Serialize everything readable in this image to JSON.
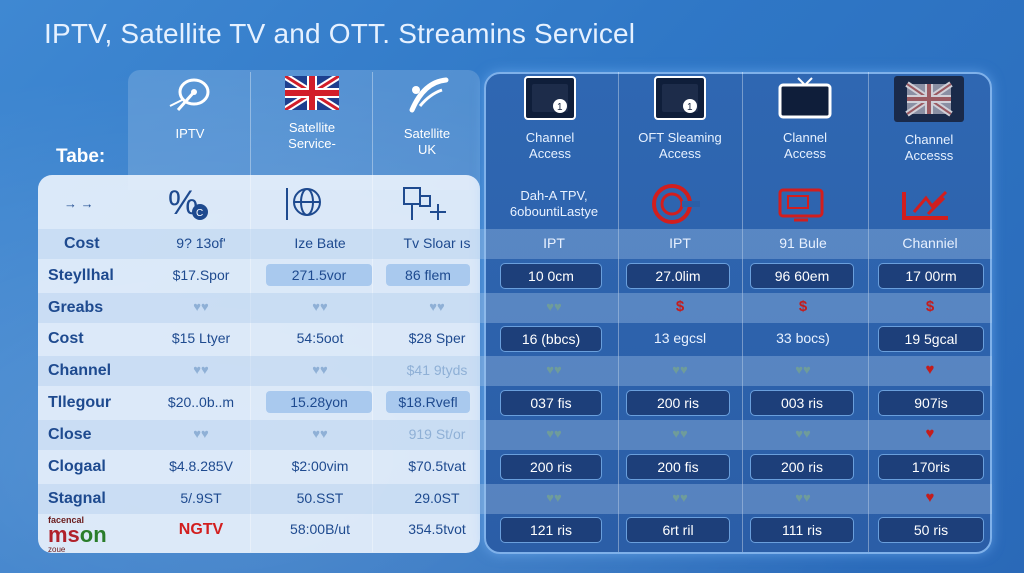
{
  "title": "IPTV, Satellite TV and OTT. Streamins Servicel",
  "table_label": "Tabe:",
  "columns": [
    {
      "label": "IPTV",
      "icon": "satellite-dish-icon"
    },
    {
      "label": "Satellite\nService-",
      "icon": "uk-flag-icon"
    },
    {
      "label": "Satellite\nUK",
      "icon": "satellite-icon"
    },
    {
      "label": "Channel\nAccess",
      "icon": "tv-screen-icon"
    },
    {
      "label": "OFT Sleaming\nAccess",
      "icon": "tv-screen-icon"
    },
    {
      "label": "Clannel\nAccess",
      "icon": "tv-icon"
    },
    {
      "label": "Channel\nAccesss",
      "icon": "uk-flag-icon"
    }
  ],
  "icon_row": {
    "label": "→ →",
    "cells": [
      "percent-icon",
      "globe-icon",
      "network-icon",
      "Dah-A TPV,\n6obountiLastye",
      "c-logo-icon",
      "monitor-icon",
      "signal-icon"
    ]
  },
  "rows": [
    {
      "label": "Cost",
      "cells": [
        "9? 13of'",
        "Ize Bate",
        "Tv Sloar ıs",
        "IPT",
        "IPT",
        "91 Bule",
        "Channiel"
      ]
    },
    {
      "label": "Steyllhal",
      "cells": [
        "$17.Spor",
        "271.5vor",
        "86 flem",
        "10 0cm",
        "27.0lim",
        "96 60em",
        "17 00rm"
      ]
    },
    {
      "label": "Greabs",
      "cells": [
        "♥♥",
        "♥♥",
        "♥♥",
        "♥♥",
        "$",
        "$",
        "$"
      ]
    },
    {
      "label": "Cost",
      "cells": [
        "$15 Ltyer",
        "54:5oot",
        "$28 Sper",
        "16 (bbcs)",
        "13 egcsl",
        "33 bocs)",
        "19 5gcal"
      ]
    },
    {
      "label": "Channel",
      "cells": [
        "♥♥",
        "♥♥",
        "$41 9tyds",
        "♥♥",
        "♥♥",
        "♥♥",
        "♥"
      ]
    },
    {
      "label": "Tllegour",
      "cells": [
        "$20..0b..m",
        "15.28yon",
        "$18.Rvefl",
        "037 fis",
        "200 ris",
        "003 ris",
        "907is"
      ]
    },
    {
      "label": "Close",
      "cells": [
        "♥♥",
        "♥♥",
        "919 St/or",
        "♥♥",
        "♥♥",
        "♥♥",
        "♥"
      ]
    },
    {
      "label": "Clogaal",
      "cells": [
        "$4.8.285V",
        "$2:00vim",
        "$70.5tvat",
        "200 ris",
        "200 fis",
        "200 ris",
        "170ris"
      ]
    },
    {
      "label": "Stagnal",
      "cells": [
        "5/.9ST",
        "50.SST",
        "29.0ST",
        "♥♥",
        "♥♥",
        "♥♥",
        "♥"
      ]
    },
    {
      "label": "",
      "cells": [
        "NGTV",
        "58:00B/ut",
        "354.5tvot",
        "121 ris",
        "6rt ril",
        "111 ris",
        "50 ris"
      ]
    }
  ],
  "logo": {
    "top": "facencal",
    "main_red": "ms",
    "main_green": "on",
    "bottom": "zoue"
  },
  "colors": {
    "accent_red": "#c41c1c",
    "dark_pill": "#1d3f7a",
    "light_pill": "#a9c9ee",
    "background": "#3f88d2"
  }
}
